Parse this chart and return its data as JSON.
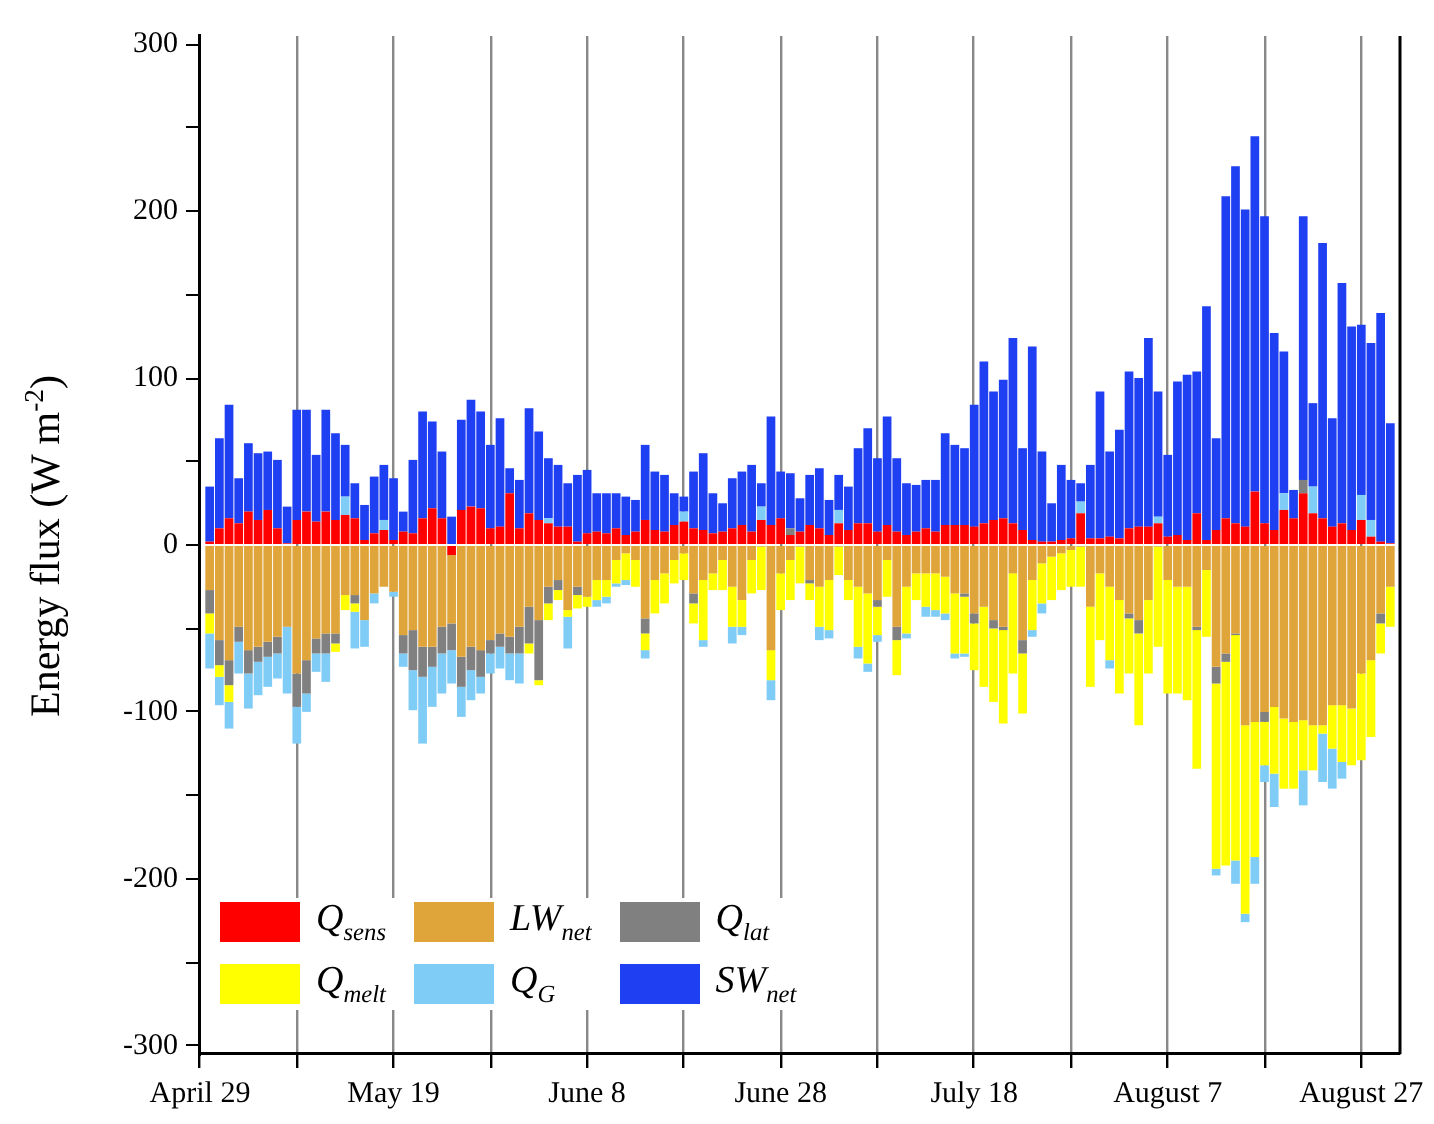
{
  "chart_data": {
    "type": "bar",
    "ylabel": "Energy flux (W m$^{-2}$)",
    "stacked": true,
    "grid": "x",
    "legend": "bottom left",
    "xlim": [
      "--04-29",
      "--08-31"
    ],
    "xticks": [
      {
        "value": "--04-29",
        "label": "April 29"
      },
      {
        "value": "--05-09",
        "label": null
      },
      {
        "value": "--05-19",
        "label": "May 19"
      },
      {
        "value": "--05-29",
        "label": null
      },
      {
        "value": "--06-08",
        "label": "June 8"
      },
      {
        "value": "--06-18",
        "label": null
      },
      {
        "value": "--06-28",
        "label": "June 28"
      },
      {
        "value": "--07-08",
        "label": null
      },
      {
        "value": "--07-18",
        "label": "July 18"
      },
      {
        "value": "--07-28",
        "label": null
      },
      {
        "value": "--08-07",
        "label": "August 7"
      },
      {
        "value": "--08-17",
        "label": null
      },
      {
        "value": "--08-27",
        "label": "August 27"
      }
    ],
    "ylim": [
      -305,
      305
    ],
    "yticks": [
      -300,
      {
        "value": -250,
        "label": null
      },
      -200,
      {
        "value": -150,
        "label": null
      },
      -100,
      {
        "value": -50,
        "label": null
      },
      0,
      {
        "value": 50,
        "label": null
      },
      100,
      {
        "value": 150,
        "label": null
      },
      200,
      {
        "value": 250,
        "label": null
      },
      300
    ],
    "x": [
      "--04-30",
      "--05-01",
      "--05-02",
      "--05-03",
      "--05-04",
      "--05-05",
      "--05-06",
      "--05-07",
      "--05-08",
      "--05-09",
      "--05-10",
      "--05-11",
      "--05-12",
      "--05-13",
      "--05-14",
      "--05-15",
      "--05-16",
      "--05-17",
      "--05-18",
      "--05-19",
      "--05-20",
      "--05-21",
      "--05-22",
      "--05-23",
      "--05-24",
      "--05-25",
      "--05-26",
      "--05-27",
      "--05-28",
      "--05-29",
      "--05-30",
      "--05-31",
      "--06-01",
      "--06-02",
      "--06-03",
      "--06-04",
      "--06-05",
      "--06-06",
      "--06-07",
      "--06-08",
      "--06-09",
      "--06-10",
      "--06-11",
      "--06-12",
      "--06-13",
      "--06-14",
      "--06-15",
      "--06-16",
      "--06-17",
      "--06-18",
      "--06-19",
      "--06-20",
      "--06-21",
      "--06-22",
      "--06-23",
      "--06-24",
      "--06-25",
      "--06-26",
      "--06-27",
      "--06-28",
      "--06-29",
      "--06-30",
      "--07-01",
      "--07-02",
      "--07-03",
      "--07-04",
      "--07-05",
      "--07-06",
      "--07-07",
      "--07-08",
      "--07-09",
      "--07-10",
      "--07-11",
      "--07-12",
      "--07-13",
      "--07-14",
      "--07-15",
      "--07-16",
      "--07-17",
      "--07-18",
      "--07-19",
      "--07-20",
      "--07-21",
      "--07-22",
      "--07-23",
      "--07-24",
      "--07-25",
      "--07-26",
      "--07-27",
      "--07-28",
      "--07-29",
      "--07-30",
      "--07-31",
      "--08-01",
      "--08-02",
      "--08-03",
      "--08-04",
      "--08-05",
      "--08-06",
      "--08-07",
      "--08-08",
      "--08-09",
      "--08-10",
      "--08-11",
      "--08-12",
      "--08-13",
      "--08-14",
      "--08-15",
      "--08-16",
      "--08-17",
      "--08-18",
      "--08-19",
      "--08-20",
      "--08-21",
      "--08-22",
      "--08-23",
      "--08-24",
      "--08-25",
      "--08-26",
      "--08-27",
      "--08-28",
      "--08-29",
      "--08-30"
    ],
    "series": [
      {
        "name": "Q$_{sens}$",
        "color": "#ff0000",
        "values": [
          2,
          10,
          16,
          13,
          20,
          15,
          21,
          10,
          1,
          15,
          20,
          14,
          20,
          15,
          18,
          16,
          3,
          7,
          9,
          3,
          8,
          7,
          16,
          22,
          16,
          -6,
          21,
          23,
          22,
          10,
          11,
          31,
          10,
          19,
          15,
          13,
          11,
          11,
          2,
          7,
          8,
          7,
          10,
          6,
          8,
          15,
          9,
          8,
          12,
          14,
          10,
          9,
          7,
          8,
          10,
          12,
          8,
          15,
          12,
          16,
          6,
          8,
          12,
          10,
          6,
          13,
          9,
          13,
          13,
          8,
          12,
          8,
          6,
          8,
          10,
          8,
          12,
          12,
          12,
          11,
          13,
          15,
          16,
          13,
          9,
          3,
          2,
          2,
          3,
          4,
          19,
          4,
          4,
          5,
          4,
          10,
          11,
          11,
          13,
          5,
          6,
          3,
          19,
          3,
          9,
          16,
          13,
          11,
          32,
          13,
          9,
          21,
          16,
          31,
          19,
          16,
          11,
          13,
          9,
          15,
          5,
          2,
          1
        ]
      },
      {
        "name": "LW$_{net}$",
        "color": "#dfa43a",
        "values": [
          -27,
          -57,
          -69,
          -49,
          -63,
          -61,
          -58,
          -55,
          -49,
          -77,
          -69,
          -56,
          -53,
          -53,
          -30,
          -30,
          -45,
          -29,
          -25,
          -28,
          -54,
          -51,
          -61,
          -61,
          -49,
          -41,
          -67,
          -61,
          -63,
          -57,
          -53,
          -55,
          -49,
          -37,
          -45,
          -25,
          -21,
          -39,
          -25,
          -31,
          -21,
          -21,
          -9,
          -5,
          -9,
          -44,
          -21,
          -17,
          -9,
          -5,
          -29,
          -21,
          -17,
          -9,
          -25,
          -33,
          -9,
          -1,
          -63,
          -17,
          -9,
          -1,
          -21,
          -25,
          -21,
          -1,
          -21,
          -25,
          -29,
          -33,
          -9,
          -49,
          -25,
          -17,
          -17,
          -17,
          -19,
          -29,
          -29,
          -41,
          -37,
          -45,
          -49,
          -17,
          -57,
          -21,
          -11,
          -7,
          -5,
          -3,
          -1,
          -37,
          -17,
          -25,
          -33,
          -41,
          -45,
          -33,
          -1,
          -21,
          -25,
          -25,
          -49,
          -15,
          -73,
          -65,
          -53,
          -108,
          -106,
          -100,
          -97,
          -104,
          -106,
          -105,
          -108,
          -108,
          -96,
          -96,
          -98,
          -77,
          -69,
          -41,
          -25
        ]
      },
      {
        "name": "Q$_{lat}$",
        "color": "#808080",
        "values": [
          -14,
          -15,
          -15,
          -9,
          -14,
          -9,
          -9,
          -10,
          0,
          -20,
          -20,
          -9,
          -12,
          -6,
          0,
          -5,
          0,
          0,
          0,
          0,
          -11,
          -24,
          -18,
          -12,
          -16,
          -16,
          -18,
          -14,
          -16,
          -8,
          -8,
          -10,
          -16,
          -22,
          -36,
          -10,
          -6,
          0,
          -5,
          0,
          0,
          0,
          0,
          0,
          0,
          -9,
          0,
          0,
          0,
          0,
          -6,
          0,
          0,
          0,
          0,
          0,
          0,
          0,
          0,
          0,
          4,
          0,
          -2,
          0,
          0,
          0,
          0,
          0,
          0,
          -4,
          0,
          -8,
          0,
          0,
          0,
          0,
          0,
          0,
          -2,
          -6,
          0,
          -5,
          -2,
          0,
          -8,
          0,
          0,
          0,
          0,
          0,
          0,
          0,
          0,
          0,
          0,
          -3,
          -8,
          0,
          0,
          0,
          0,
          0,
          -2,
          0,
          -10,
          -5,
          -1,
          0,
          0,
          -6,
          0,
          0,
          0,
          8,
          0,
          0,
          0,
          0,
          0,
          0,
          0,
          -6,
          0
        ]
      },
      {
        "name": "Q$_{melt}$",
        "color": "#ffff00",
        "values": [
          -12,
          -7,
          -10,
          0,
          0,
          0,
          0,
          0,
          0,
          0,
          0,
          0,
          0,
          -5,
          -9,
          -5,
          0,
          0,
          0,
          0,
          0,
          0,
          0,
          0,
          0,
          0,
          0,
          0,
          0,
          0,
          0,
          0,
          0,
          -6,
          -3,
          -10,
          -6,
          -4,
          -8,
          -6,
          -12,
          -10,
          -14,
          -16,
          -16,
          -10,
          -20,
          -18,
          -14,
          -16,
          -12,
          -36,
          -10,
          -18,
          -24,
          -16,
          -20,
          -26,
          -18,
          -22,
          -24,
          -22,
          -10,
          -24,
          -30,
          -17,
          -12,
          -36,
          -42,
          -17,
          -22,
          -21,
          -28,
          -16,
          -20,
          -22,
          -22,
          -36,
          -34,
          -28,
          -48,
          -44,
          -56,
          -60,
          -36,
          -30,
          -24,
          -26,
          -22,
          -22,
          -24,
          -48,
          -40,
          -44,
          -56,
          -33,
          -55,
          -44,
          -60,
          -68,
          -64,
          -68,
          -83,
          -40,
          -111,
          -122,
          -135,
          -113,
          -81,
          -26,
          -40,
          -42,
          -40,
          -30,
          -27,
          -5,
          -26,
          -34,
          -34,
          -52,
          -46,
          -18,
          -24
        ]
      },
      {
        "name": "Q$_{G}$",
        "color": "#7fccf7",
        "values": [
          -21,
          -17,
          -16,
          -19,
          -21,
          -20,
          -18,
          -15,
          -40,
          -22,
          -11,
          -11,
          -17,
          0,
          11,
          -22,
          -16,
          -6,
          6,
          -3,
          -8,
          -24,
          -40,
          -24,
          -24,
          -20,
          -18,
          -18,
          -10,
          -12,
          -13,
          -16,
          -18,
          0,
          0,
          3,
          0,
          -19,
          0,
          0,
          -4,
          -4,
          -2,
          -3,
          0,
          -5,
          0,
          0,
          0,
          6,
          0,
          -4,
          0,
          0,
          -10,
          -5,
          0,
          8,
          -12,
          0,
          0,
          0,
          0,
          -8,
          -5,
          8,
          0,
          -7,
          -5,
          -4,
          0,
          0,
          -3,
          0,
          -6,
          -4,
          -4,
          -3,
          -2,
          0,
          0,
          0,
          0,
          0,
          0,
          -4,
          -6,
          0,
          0,
          0,
          7,
          0,
          0,
          -5,
          0,
          0,
          0,
          0,
          4,
          0,
          0,
          0,
          0,
          0,
          -4,
          0,
          -14,
          -5,
          -16,
          -10,
          -20,
          10,
          0,
          -21,
          16,
          -29,
          -24,
          -10,
          0,
          15,
          10,
          0,
          0
        ]
      },
      {
        "name": "SW$_{net}$",
        "color": "#1f3ff2",
        "values": [
          33,
          54,
          68,
          27,
          41,
          40,
          35,
          41,
          22,
          66,
          61,
          40,
          61,
          52,
          31,
          21,
          21,
          34,
          33,
          37,
          12,
          44,
          64,
          52,
          40,
          17,
          54,
          64,
          58,
          50,
          65,
          15,
          29,
          63,
          53,
          36,
          37,
          26,
          40,
          38,
          23,
          24,
          21,
          23,
          19,
          45,
          35,
          34,
          19,
          9,
          34,
          46,
          24,
          17,
          30,
          32,
          40,
          14,
          65,
          28,
          33,
          20,
          30,
          36,
          21,
          21,
          26,
          45,
          57,
          44,
          65,
          44,
          31,
          28,
          29,
          31,
          55,
          48,
          46,
          73,
          97,
          77,
          83,
          111,
          49,
          116,
          54,
          23,
          45,
          35,
          11,
          44,
          88,
          51,
          65,
          94,
          89,
          113,
          75,
          49,
          92,
          99,
          85,
          140,
          55,
          193,
          214,
          190,
          213,
          184,
          118,
          85,
          17,
          158,
          50,
          165,
          65,
          144,
          122,
          102,
          106,
          137,
          72
        ]
      }
    ]
  }
}
